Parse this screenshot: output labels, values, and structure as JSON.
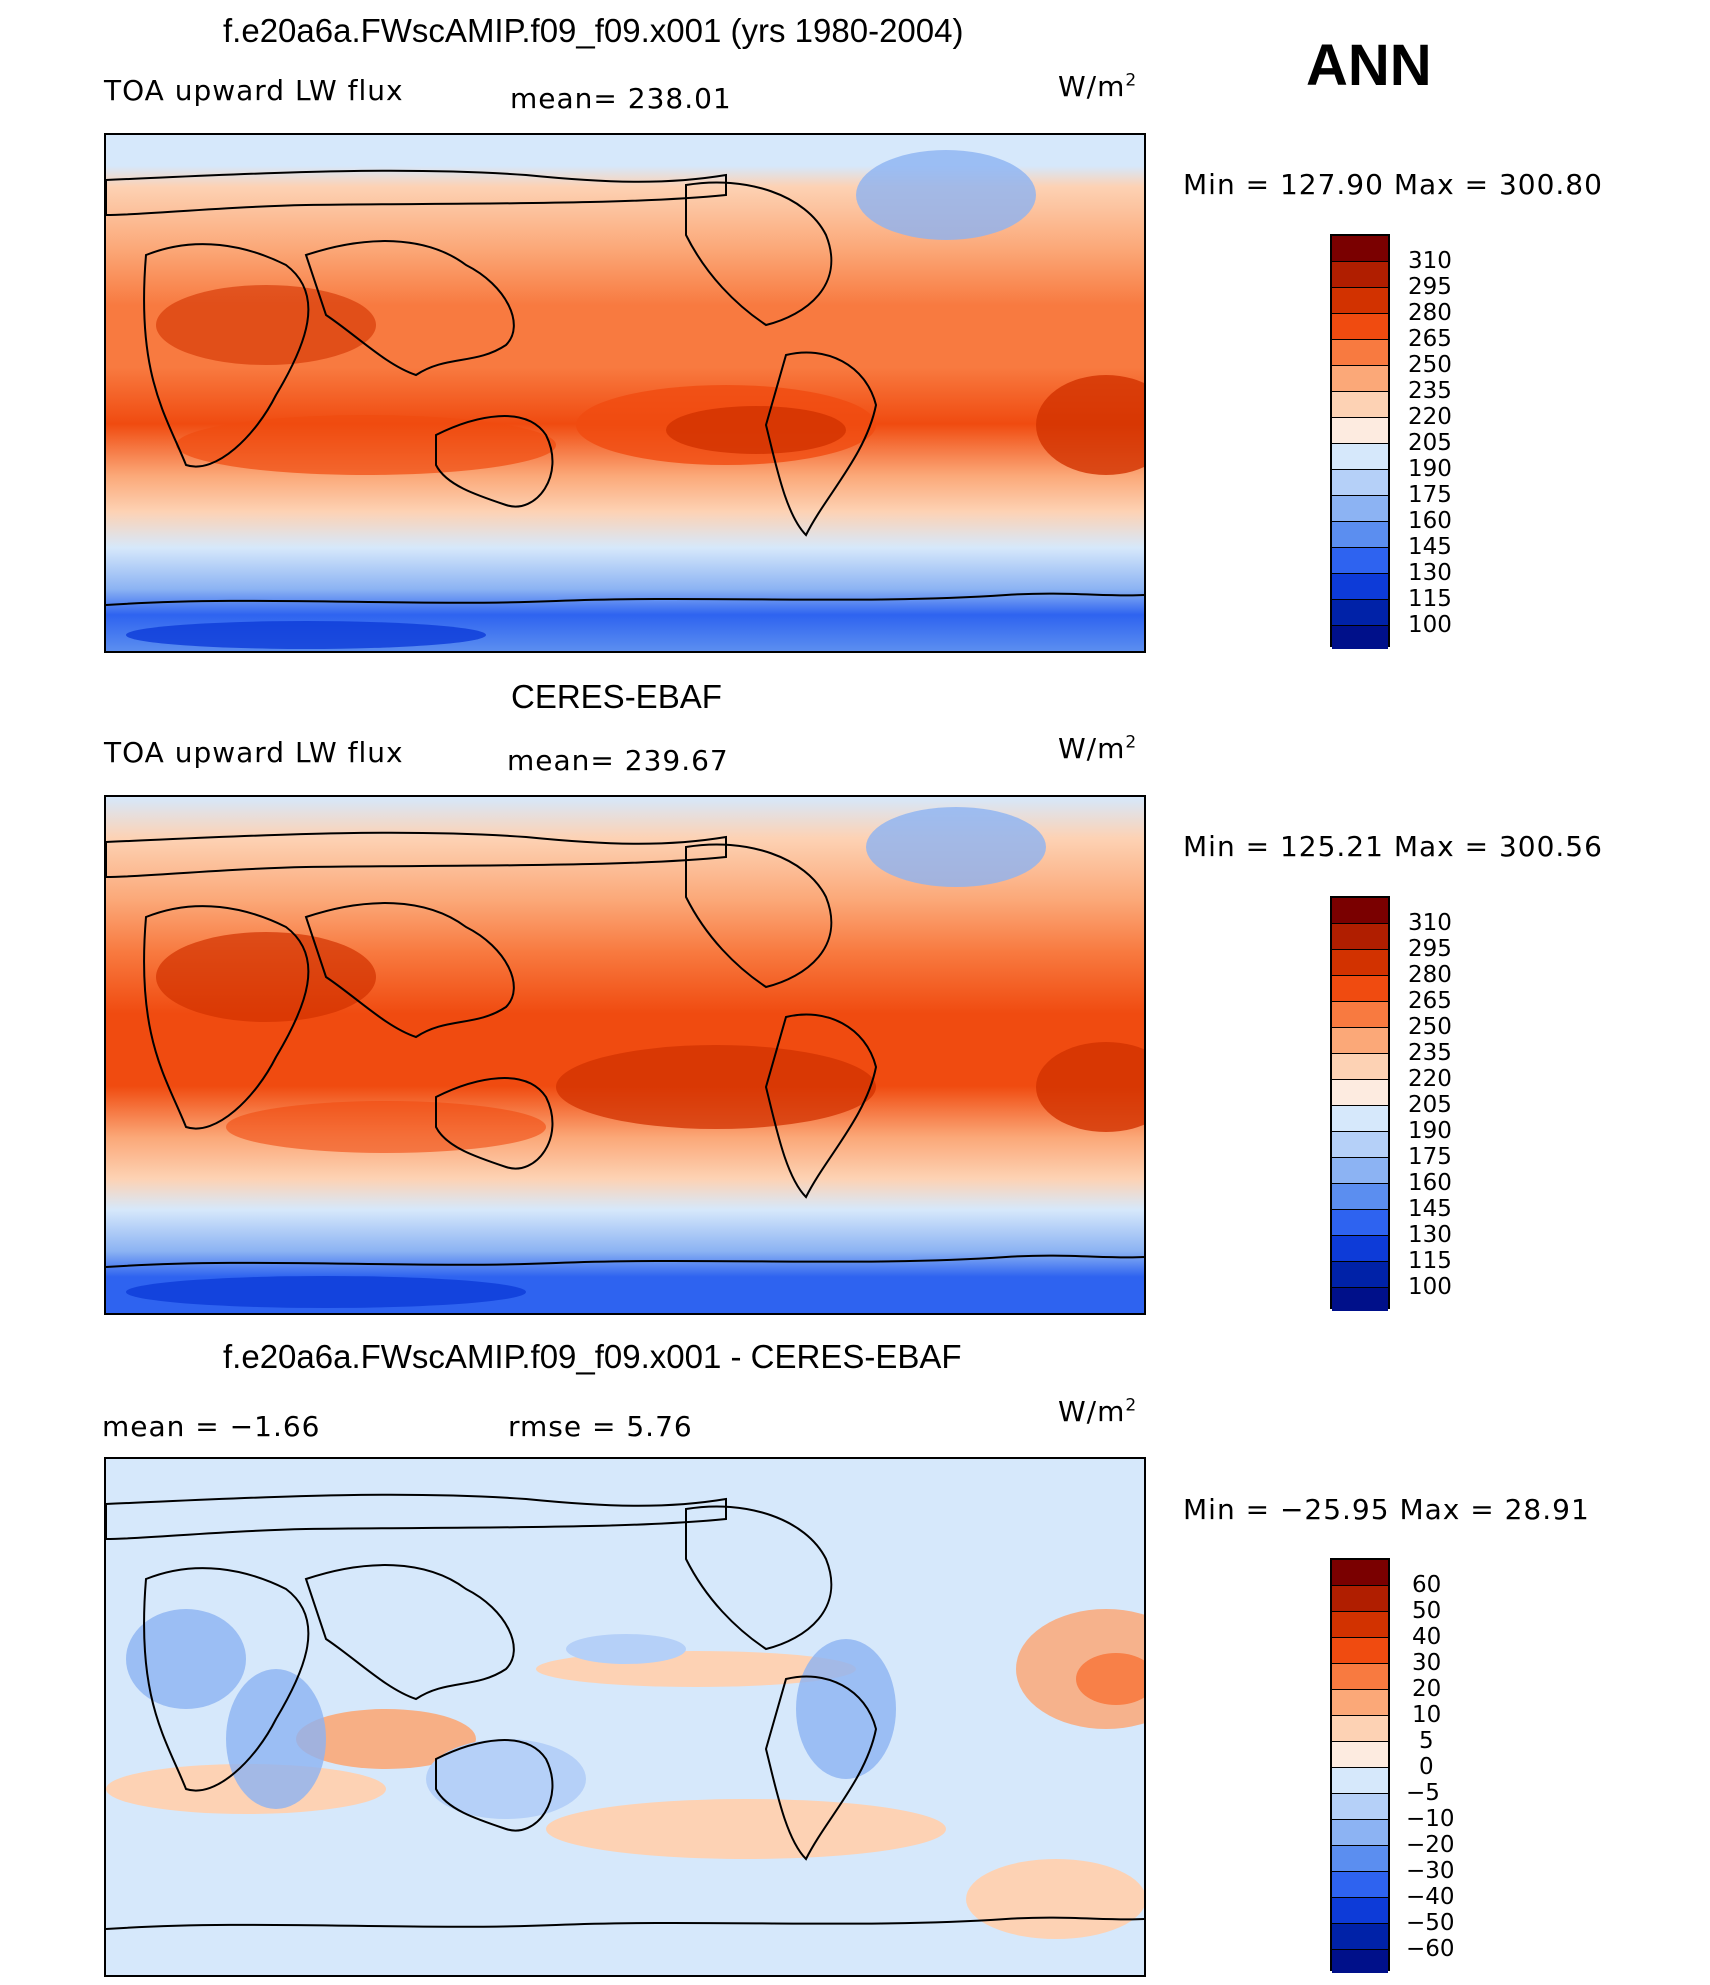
{
  "season": "ANN",
  "panels": [
    {
      "title": "f.e20a6a.FWscAMIP.f09_f09.x001 (yrs 1980-2004)",
      "left": "TOA upward LW flux",
      "mid": "mean=  238.01",
      "unit": "W/m",
      "unit_exp": "2",
      "minmax": "Min  =  127.90  Max  =  300.80",
      "ticks": [
        "310",
        "295",
        "280",
        "265",
        "250",
        "235",
        "220",
        "205",
        "190",
        "175",
        "160",
        "145",
        "130",
        "115",
        "100"
      ]
    },
    {
      "title": "CERES-EBAF",
      "left": "TOA upward LW flux",
      "mid": "mean=  239.67",
      "unit": "W/m",
      "unit_exp": "2",
      "minmax": "Min  =  125.21  Max  =  300.56",
      "ticks": [
        "310",
        "295",
        "280",
        "265",
        "250",
        "235",
        "220",
        "205",
        "190",
        "175",
        "160",
        "145",
        "130",
        "115",
        "100"
      ]
    },
    {
      "title": "f.e20a6a.FWscAMIP.f09_f09.x001 - CERES-EBAF",
      "left": "mean  =    −1.66",
      "mid": "rmse  =     5.76",
      "unit": "W/m",
      "unit_exp": "2",
      "minmax": "Min  =  −25.95  Max  =    28.91",
      "ticks": [
        "60",
        "50",
        "40",
        "30",
        "20",
        "10",
        "5",
        "0",
        "−5",
        "−10",
        "−20",
        "−30",
        "−40",
        "−50",
        "−60"
      ]
    }
  ],
  "colors": {
    "abs_scale": [
      "#7a0000",
      "#b01e00",
      "#d23200",
      "#f04b10",
      "#f87a40",
      "#fba878",
      "#fdd2b4",
      "#fdebe0",
      "#d6e8fb",
      "#b5d0f8",
      "#8cb3f3",
      "#5b8ef0",
      "#2e63f0",
      "#0d3bd8",
      "#0022a8",
      "#00108a"
    ],
    "diff_scale": [
      "#7a0000",
      "#b01e00",
      "#d23200",
      "#f04b10",
      "#f87a40",
      "#fba878",
      "#fdd2b4",
      "#fdebe0",
      "#d6e8fb",
      "#b5d0f8",
      "#8cb3f3",
      "#5b8ef0",
      "#2e63f0",
      "#0d3bd8",
      "#0022a8",
      "#00108a"
    ]
  }
}
